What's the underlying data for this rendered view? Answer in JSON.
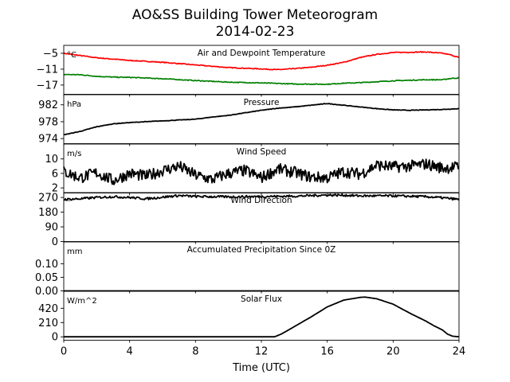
{
  "figure": {
    "title": "AO&SS Building Tower Meteorogram",
    "subtitle": "2014-02-23",
    "xlabel": "Time (UTC)"
  },
  "chart_data": [
    {
      "type": "line",
      "title": "Air and Dewpoint Temperature",
      "unit": "°C",
      "xlim": [
        0,
        24
      ],
      "ylim": [
        -20.5,
        -2.0
      ],
      "yticks": [
        -5,
        -11,
        -17
      ],
      "yticklabels": [
        "−5",
        "−11",
        "−17"
      ],
      "series": [
        {
          "color": "#ff0000",
          "x": [
            0,
            2,
            4,
            6,
            8,
            10,
            12,
            13,
            14,
            15,
            16,
            17,
            18,
            19,
            20,
            21,
            22,
            23,
            23.5,
            24
          ],
          "y": [
            -5.0,
            -6.7,
            -7.7,
            -8.4,
            -9.4,
            -10.4,
            -10.9,
            -11.2,
            -10.8,
            -10.3,
            -9.5,
            -8.4,
            -6.6,
            -5.4,
            -4.7,
            -4.6,
            -4.5,
            -5.0,
            -5.6,
            -6.6
          ]
        },
        {
          "color": "#008000",
          "x": [
            0,
            1,
            2,
            3,
            4,
            6,
            8,
            10,
            12,
            14,
            16,
            17,
            18,
            20,
            22,
            23,
            23.5,
            24
          ],
          "y": [
            -13.0,
            -13.1,
            -13.7,
            -14.0,
            -14.1,
            -14.6,
            -15.3,
            -15.9,
            -16.2,
            -16.6,
            -16.7,
            -16.3,
            -16.1,
            -15.4,
            -15.0,
            -15.0,
            -14.5,
            -14.3
          ]
        }
      ]
    },
    {
      "type": "line",
      "title": "Pressure",
      "unit": "hPa",
      "xlim": [
        0,
        24
      ],
      "ylim": [
        972.8,
        984.4
      ],
      "yticks": [
        982,
        978,
        974
      ],
      "yticklabels": [
        "982",
        "978",
        "974"
      ],
      "series": [
        {
          "color": "#000000",
          "x": [
            0,
            1,
            2,
            3,
            4,
            6,
            8,
            9,
            10,
            11,
            12,
            13,
            14,
            15,
            16,
            17,
            18,
            19,
            20,
            21,
            22,
            23,
            24
          ],
          "y": [
            974.9,
            975.7,
            976.8,
            977.5,
            977.8,
            978.2,
            978.6,
            979.1,
            979.5,
            980.1,
            980.7,
            981.2,
            981.5,
            981.9,
            982.3,
            981.9,
            981.5,
            981.1,
            980.8,
            980.7,
            980.8,
            980.9,
            981.1
          ]
        }
      ]
    },
    {
      "type": "line",
      "title": "Wind Speed",
      "unit": "m/s",
      "xlim": [
        0,
        24
      ],
      "ylim": [
        0.6,
        14.1
      ],
      "yticks": [
        10,
        6,
        2
      ],
      "yticklabels": [
        "10",
        "6",
        "2"
      ],
      "series": [
        {
          "color": "#000000",
          "x": [
            0,
            1,
            2,
            3,
            4,
            5,
            6,
            7,
            8,
            9,
            10,
            11,
            12,
            13,
            14,
            15,
            16,
            17,
            18,
            19,
            20,
            21,
            22,
            23,
            24
          ],
          "y": [
            6.5,
            4.8,
            6.2,
            4.0,
            6.0,
            5.2,
            6.8,
            8.0,
            5.5,
            4.3,
            6.0,
            6.8,
            4.8,
            7.2,
            6.3,
            5.0,
            4.8,
            6.5,
            5.8,
            8.3,
            7.8,
            8.0,
            8.6,
            7.5,
            7.8
          ]
        }
      ]
    },
    {
      "type": "line",
      "title": "Wind Direction",
      "unit": "°",
      "xlim": [
        0,
        24
      ],
      "ylim": [
        0,
        300
      ],
      "yticks": [
        270,
        180,
        90,
        0
      ],
      "yticklabels": [
        "270",
        "180",
        "90",
        "0"
      ],
      "series": [
        {
          "color": "#000000",
          "x": [
            0,
            1,
            2,
            3,
            4,
            5,
            6,
            7,
            8,
            10,
            12,
            14,
            16,
            17,
            18,
            20,
            22,
            23,
            24
          ],
          "y": [
            258,
            262,
            270,
            275,
            270,
            262,
            272,
            282,
            276,
            274,
            276,
            278,
            285,
            284,
            280,
            280,
            275,
            268,
            258
          ]
        }
      ]
    },
    {
      "type": "line",
      "title": "Accumulated Precipitation Since 0Z",
      "unit": "mm",
      "xlim": [
        0,
        24
      ],
      "ylim": [
        0,
        0.18
      ],
      "yticks": [
        0.1,
        0.05,
        0.0
      ],
      "yticklabels": [
        "0.10",
        "0.05",
        "0.00"
      ],
      "series": [
        {
          "color": "#000000",
          "x": [
            0,
            24
          ],
          "y": [
            0,
            0
          ]
        }
      ]
    },
    {
      "type": "line",
      "title": "Solar Flux",
      "unit": "W/m^2",
      "xlim": [
        0,
        24
      ],
      "ylim": [
        -50,
        670
      ],
      "yticks": [
        420,
        210,
        0
      ],
      "yticklabels": [
        "420",
        "210",
        "0"
      ],
      "series": [
        {
          "color": "#000000",
          "x": [
            0,
            12.8,
            13.0,
            13.2,
            13.5,
            14,
            15,
            16,
            17,
            18,
            18.3,
            19,
            20,
            21,
            22,
            22.5,
            23,
            23.3,
            23.6,
            24
          ],
          "y": [
            0,
            0,
            20,
            40,
            80,
            150,
            290,
            440,
            540,
            580,
            585,
            560,
            480,
            350,
            230,
            160,
            100,
            40,
            10,
            0
          ]
        }
      ]
    }
  ],
  "x_axis": {
    "ticks": [
      0,
      4,
      8,
      12,
      16,
      20,
      24
    ],
    "ticklabels": [
      "0",
      "4",
      "8",
      "12",
      "16",
      "20",
      "24"
    ]
  }
}
